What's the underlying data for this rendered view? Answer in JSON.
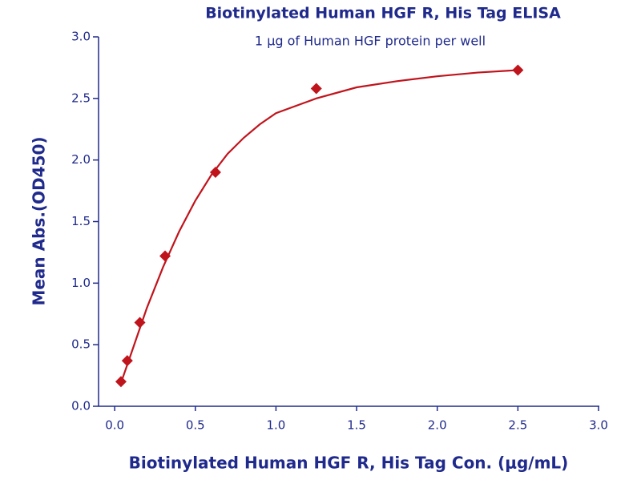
{
  "chart_data": {
    "type": "scatter",
    "title": "Biotinylated Human HGF R, His Tag ELISA",
    "subtitle": "1 μg of Human HGF protein per well",
    "xlabel": "Biotinylated Human HGF R, His Tag Con. (μg/mL)",
    "ylabel": "Mean Abs.(OD450)",
    "xlim": [
      -0.1,
      3.0
    ],
    "ylim": [
      0,
      3.0
    ],
    "xticks": [
      {
        "value": 0,
        "label": "0.0"
      },
      0.5,
      {
        "value": 1,
        "label": "1.0"
      },
      1.5,
      {
        "value": 2,
        "label": "2.0"
      },
      2.5,
      {
        "value": 3,
        "label": "3.0"
      }
    ],
    "yticks": [
      {
        "value": 0,
        "label": "0.0"
      },
      0.5,
      {
        "value": 1,
        "label": "1.0"
      },
      1.5,
      {
        "value": 2,
        "label": "2.0"
      },
      2.5,
      {
        "value": 3,
        "label": "3.0"
      }
    ],
    "axis_color": "#1f2a8c",
    "series": [
      {
        "type": "scatter",
        "marker": "diamond",
        "color": "#c0141c",
        "x": [
          0.039,
          0.078,
          0.156,
          0.3125,
          0.625,
          1.25,
          2.5
        ],
        "values": [
          0.2,
          0.37,
          0.68,
          1.22,
          1.9,
          2.58,
          2.73
        ]
      },
      {
        "type": "line",
        "color": "#c0141c",
        "x": [
          0.039,
          0.1,
          0.2,
          0.3,
          0.4,
          0.5,
          0.6,
          0.7,
          0.8,
          0.9,
          1.0,
          1.25,
          1.5,
          1.75,
          2.0,
          2.25,
          2.5
        ],
        "values": [
          0.19,
          0.42,
          0.8,
          1.13,
          1.42,
          1.67,
          1.88,
          2.05,
          2.18,
          2.29,
          2.38,
          2.5,
          2.59,
          2.64,
          2.68,
          2.71,
          2.73
        ]
      }
    ]
  }
}
